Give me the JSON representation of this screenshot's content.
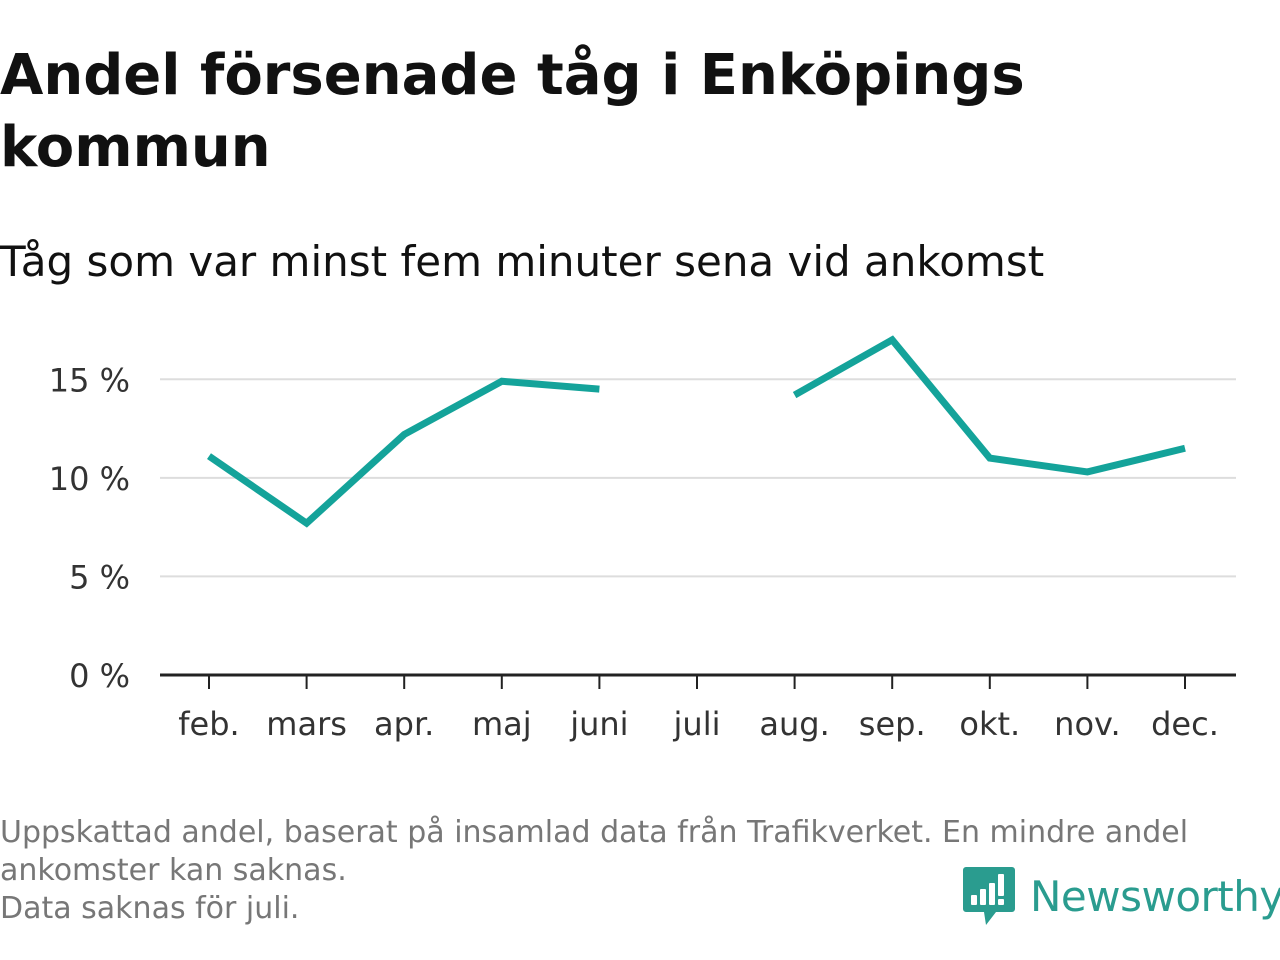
{
  "title": "Andel försenade tåg i Enköpings kommun",
  "subtitle": "Tåg som var minst fem minuter sena vid ankomst",
  "footnote": {
    "line1": "Uppskattad andel, baserat på insamlad data från Trafikverket. En mindre andel",
    "line2": "ankomster kan saknas.",
    "line3": "Data saknas för juli."
  },
  "brand": {
    "name": "Newsworthy",
    "icon": "newsworthy-logo-icon",
    "color": "#2a9c8f"
  },
  "chart_data": {
    "type": "line",
    "title": "Andel försenade tåg i Enköpings kommun",
    "subtitle": "Tåg som var minst fem minuter sena vid ankomst",
    "categories": [
      "feb.",
      "mars",
      "apr.",
      "maj",
      "juni",
      "juli",
      "aug.",
      "sep.",
      "okt.",
      "nov.",
      "dec."
    ],
    "series": [
      {
        "values": [
          11.1,
          7.7,
          12.2,
          14.9,
          14.5,
          null,
          14.2,
          17.0,
          11.0,
          10.3,
          11.5
        ],
        "color": "#14a39a"
      }
    ],
    "y_ticks": [
      0,
      5,
      10,
      15
    ],
    "y_tick_labels": [
      "0 %",
      "5 %",
      "10 %",
      "15 %"
    ],
    "ylim": [
      0,
      17.5
    ],
    "xlabel": "",
    "ylabel": "",
    "grid": true,
    "legend": "none"
  }
}
